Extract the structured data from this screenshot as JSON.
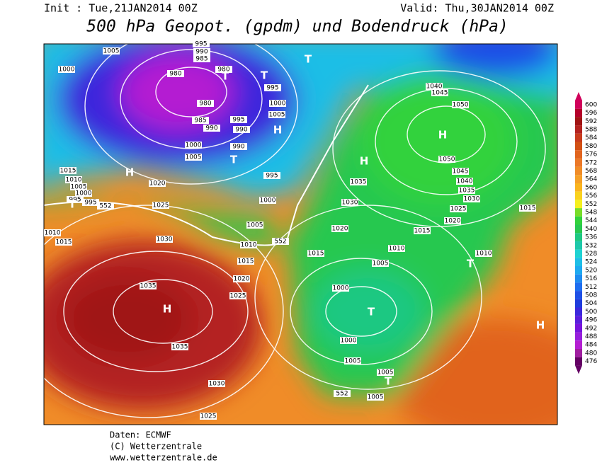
{
  "header": {
    "init": "Init : Tue,21JAN2014 00Z",
    "valid": "Valid: Thu,30JAN2014 00Z",
    "title": "500 hPa Geopot. (gpdm) und Bodendruck (hPa)"
  },
  "footer": [
    "Daten: ECMWF",
    "(C) Wetterzentrale",
    "www.wetterzentrale.de"
  ],
  "legend": {
    "levels": [
      {
        "value": 600,
        "color": "#d0005a"
      },
      {
        "value": 596,
        "color": "#b4002a"
      },
      {
        "value": 592,
        "color": "#a01414"
      },
      {
        "value": 588,
        "color": "#b42320"
      },
      {
        "value": 584,
        "color": "#c83c1e"
      },
      {
        "value": 580,
        "color": "#d25014"
      },
      {
        "value": 576,
        "color": "#e1641e"
      },
      {
        "value": 572,
        "color": "#eb7828"
      },
      {
        "value": 568,
        "color": "#f08c28"
      },
      {
        "value": 564,
        "color": "#f5a028"
      },
      {
        "value": 560,
        "color": "#fab41e"
      },
      {
        "value": 556,
        "color": "#fad21e"
      },
      {
        "value": 552,
        "color": "#f5f01e"
      },
      {
        "value": 548,
        "color": "#78dc28"
      },
      {
        "value": 544,
        "color": "#32d23c"
      },
      {
        "value": 540,
        "color": "#28c850"
      },
      {
        "value": 536,
        "color": "#1ec882"
      },
      {
        "value": 532,
        "color": "#1ec8aa"
      },
      {
        "value": 528,
        "color": "#1ed2d2"
      },
      {
        "value": 524,
        "color": "#1ebee6"
      },
      {
        "value": 520,
        "color": "#1eaaf0"
      },
      {
        "value": 516,
        "color": "#1e8cf0"
      },
      {
        "value": 512,
        "color": "#1e6ef0"
      },
      {
        "value": 508,
        "color": "#1e50e6"
      },
      {
        "value": 504,
        "color": "#1e3cdc"
      },
      {
        "value": 500,
        "color": "#3c28dc"
      },
      {
        "value": 496,
        "color": "#5a1edc"
      },
      {
        "value": 492,
        "color": "#7814dc"
      },
      {
        "value": 488,
        "color": "#961edc"
      },
      {
        "value": 484,
        "color": "#b41ed2"
      },
      {
        "value": 480,
        "color": "#a01ea0"
      },
      {
        "value": 476,
        "color": "#640064"
      }
    ]
  },
  "map": {
    "isobar_labels": [
      "1005",
      "995",
      "990",
      "985",
      "1000",
      "980",
      "980",
      "995",
      "1000",
      "980",
      "1005",
      "985",
      "990",
      "995",
      "990",
      "1000",
      "990",
      "1005",
      "995",
      "1015",
      "1010",
      "1005",
      "1000",
      "995",
      "995",
      "552",
      "1020",
      "1025",
      "1000",
      "1005",
      "1010",
      "552",
      "1010",
      "1015",
      "1030",
      "1015",
      "1020",
      "1035",
      "1025",
      "1035",
      "1030",
      "1025",
      "1040",
      "1045",
      "1050",
      "1050",
      "1045",
      "1040",
      "1035",
      "1030",
      "1025",
      "1020",
      "1015",
      "1015",
      "1035",
      "1030",
      "1020",
      "1015",
      "1010",
      "1005",
      "1010",
      "1000",
      "1000",
      "1005",
      "1005",
      "1005",
      "552"
    ],
    "pressure_centers": [
      "H",
      "H",
      "H",
      "H",
      "H",
      "H",
      "T",
      "T",
      "T",
      "T",
      "T",
      "T",
      "T",
      "T"
    ]
  }
}
